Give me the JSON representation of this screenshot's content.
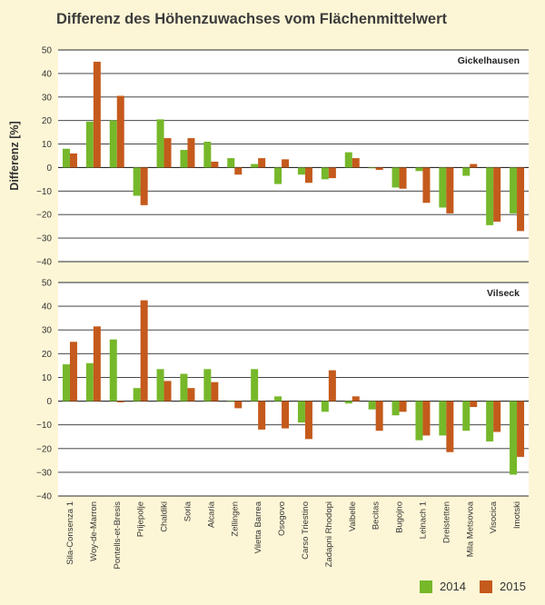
{
  "title": "Differenz des Höhenzuwachses vom Flächenmittelwert",
  "colors": {
    "s2014": "#76b82a",
    "s2015": "#c45a1c",
    "plot_bg": "#ffffff",
    "grid": "#2b2b2b"
  },
  "chart_data": [
    {
      "type": "bar",
      "panel_label": "Gickelhausen",
      "ylabel": "Differenz [%]",
      "ylim": [
        -40,
        50
      ],
      "yticks": [
        50,
        40,
        30,
        20,
        10,
        0,
        -10,
        -20,
        -30,
        -40
      ],
      "grid": true,
      "categories": [
        "Sila-Consenza 1",
        "Woy-de-Marron",
        "Pontells-et-Bresis",
        "Prijepolje",
        "Chaldiki",
        "Soria",
        "Alcaria",
        "Zellingen",
        "Viletta Barrea",
        "Osogovo",
        "Carso Triestino",
        "Zadapni Rhodopi",
        "Valbelle",
        "Becitas",
        "Bugojno",
        "Leinach 1",
        "Dreistetten",
        "Mila Metsovoa",
        "Visocica",
        "Imotski"
      ],
      "series": [
        {
          "name": "2014",
          "values": [
            8,
            19.5,
            20,
            -12,
            20.5,
            7.5,
            11,
            4,
            1.5,
            -7,
            -3,
            -5,
            6.5,
            0,
            -8.5,
            -1.5,
            -17,
            -3.5,
            -24.5,
            -19.5
          ]
        },
        {
          "name": "2015",
          "values": [
            6,
            45,
            30.5,
            -16,
            12.5,
            12.5,
            2.5,
            -3,
            4,
            3.5,
            -6.5,
            -4.5,
            4,
            -1,
            -9,
            -15,
            -19.5,
            1.5,
            -23,
            -27
          ]
        }
      ]
    },
    {
      "type": "bar",
      "panel_label": "Vilseck",
      "ylabel": "",
      "ylim": [
        -40,
        50
      ],
      "yticks": [
        50,
        40,
        30,
        20,
        10,
        0,
        -10,
        -20,
        -30,
        -40
      ],
      "grid": true,
      "categories": [
        "Sila-Consenza 1",
        "Woy-de-Marron",
        "Pontells-et-Bresis",
        "Prijepolje",
        "Chaldiki",
        "Soria",
        "Alcaria",
        "Zellingen",
        "Viletta Barrea",
        "Osogovo",
        "Carso Triestino",
        "Zadapni Rhodopi",
        "Valbelle",
        "Becitas",
        "Bugojno",
        "Leinach 1",
        "Dreistetten",
        "Mila Metsovoa",
        "Visocica",
        "Imotski"
      ],
      "series": [
        {
          "name": "2014",
          "values": [
            15.5,
            16,
            26,
            5.5,
            13.5,
            11.5,
            13.5,
            0,
            13.5,
            2,
            -9,
            -4.5,
            -1,
            -3.5,
            -6,
            -16.5,
            -14.5,
            -12.5,
            -17,
            -31
          ]
        },
        {
          "name": "2015",
          "values": [
            25,
            31.5,
            -0.5,
            42.5,
            8.5,
            5.5,
            8,
            -3,
            -12,
            -11.5,
            -16,
            13,
            2,
            -12.5,
            -4.5,
            -14.5,
            -21.5,
            -2.5,
            -13,
            -23.5
          ]
        }
      ]
    }
  ],
  "legend": {
    "items": [
      "2014",
      "2015"
    ],
    "position": "bottom-right"
  }
}
